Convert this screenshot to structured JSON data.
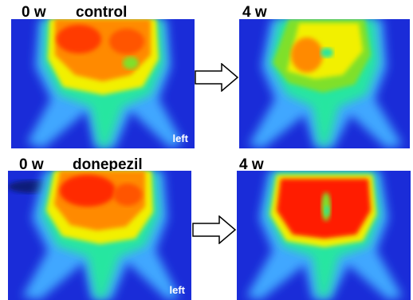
{
  "rows": [
    {
      "before": {
        "time": "0 w",
        "group": "control",
        "side": "left"
      },
      "after": {
        "time": "4 w"
      }
    },
    {
      "before": {
        "time": "0 w",
        "group": "donepezil",
        "side": "left"
      },
      "after": {
        "time": "4 w"
      }
    }
  ],
  "colors": {
    "background_blue": "#1a2cd8",
    "cool": "#3fa7ff",
    "mid": "#25e6a0",
    "warm_green": "#7fe02a",
    "yellow": "#f2f000",
    "orange": "#ff8a00",
    "hot": "#ff1a00"
  },
  "icons": [
    "arrow-right-icon",
    "arrow-right-icon"
  ]
}
